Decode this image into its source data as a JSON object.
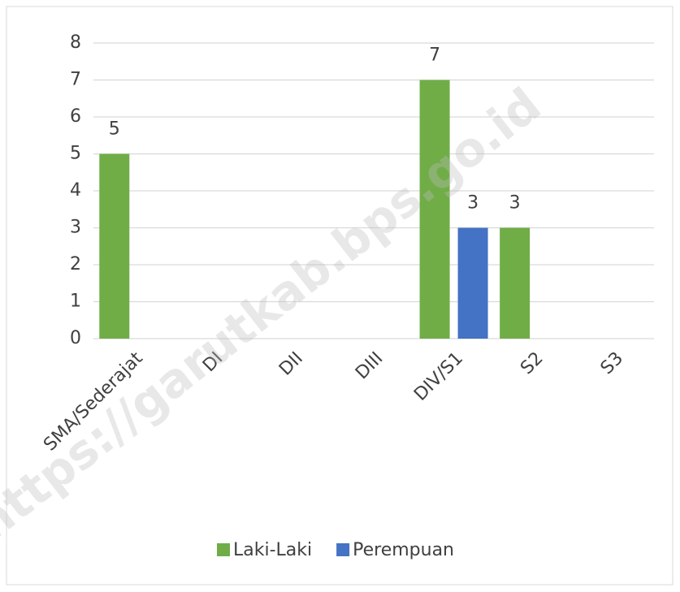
{
  "chart_data": {
    "type": "bar",
    "categories": [
      "SMA/Sederajat",
      "DI",
      "DII",
      "DIII",
      "DIV/S1",
      "S2",
      "S3"
    ],
    "series": [
      {
        "name": "Laki-Laki",
        "color": "#70ad47",
        "values": [
          5,
          0,
          0,
          0,
          7,
          3,
          0
        ]
      },
      {
        "name": "Perempuan",
        "color": "#4472c4",
        "values": [
          0,
          0,
          0,
          0,
          3,
          0,
          0
        ]
      }
    ],
    "ylim": [
      0,
      8
    ],
    "yticks": [
      0,
      1,
      2,
      3,
      4,
      5,
      6,
      7,
      8
    ],
    "grid": true,
    "legend": "bottom",
    "watermark": "https://garutkab.bps.go.id"
  }
}
